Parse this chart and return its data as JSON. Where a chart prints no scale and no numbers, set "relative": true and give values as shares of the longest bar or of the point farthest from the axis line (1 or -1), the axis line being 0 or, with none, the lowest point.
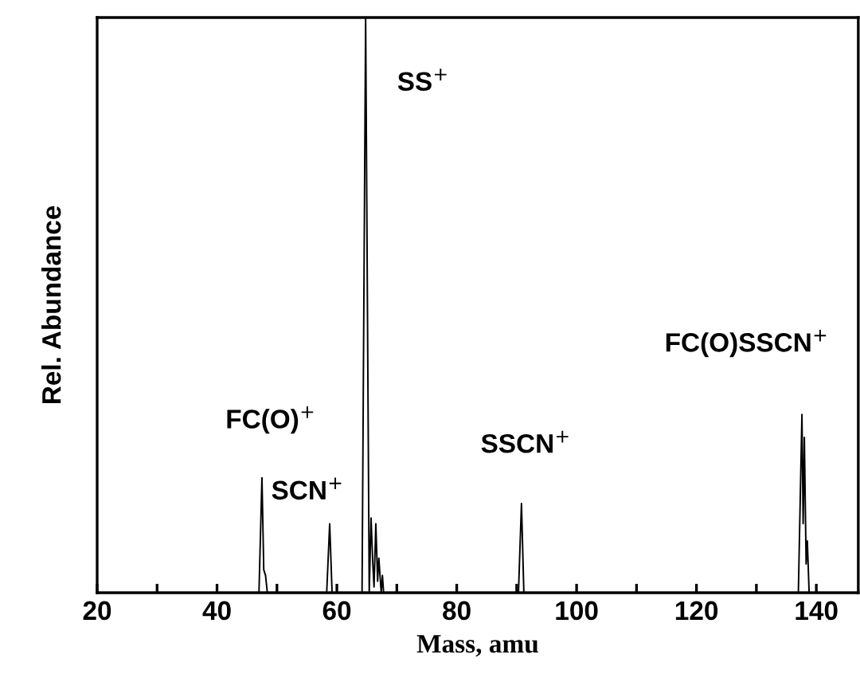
{
  "chart_data": {
    "type": "line",
    "relative": true,
    "xlabel": "Mass, amu",
    "ylabel": "Rel. Abundance",
    "xlim": [
      20,
      147
    ],
    "xticks": [
      20,
      {
        "value": 30,
        "label": null
      },
      40,
      {
        "value": 50,
        "label": null
      },
      60,
      {
        "value": 70,
        "label": null
      },
      80,
      {
        "value": 90,
        "label": null
      },
      100,
      {
        "value": 110,
        "label": null
      },
      120,
      {
        "value": 130,
        "label": null
      },
      140
    ],
    "series": [
      {
        "color": "#000000",
        "x": [
          20,
          47.0,
          47.5,
          47.8,
          48.1,
          48.4,
          58.3,
          58.8,
          59.2,
          64.2,
          64.8,
          65.4,
          65.7,
          66.0,
          66.2,
          66.5,
          66.8,
          67.0,
          67.4,
          67.6,
          67.8,
          90.3,
          90.8,
          91.2,
          137.0,
          137.6,
          137.8,
          138.0,
          138.3,
          138.5,
          138.8,
          147
        ],
        "values": [
          0,
          0,
          0.2,
          0.04,
          0.03,
          0,
          0,
          0.12,
          0,
          0,
          1.0,
          0,
          0.13,
          0.05,
          0.01,
          0.12,
          0.02,
          0.06,
          0,
          0.03,
          0,
          0,
          0.155,
          0,
          0,
          0.31,
          0.12,
          0.27,
          0.05,
          0.09,
          0,
          0
        ]
      }
    ],
    "annotations": [
      {
        "text": "FC(O)$^{+}$",
        "x": 47.5,
        "y": 0.2
      },
      {
        "text": "SCN$^{+}$",
        "x": 58.8,
        "y": 0.12
      },
      {
        "text": "SS$^{+}$",
        "x": 64.8,
        "y": 1.0
      },
      {
        "text": "SSCN$^{+}$",
        "x": 90.8,
        "y": 0.155
      },
      {
        "text": "FC(O)SSCN$^{+}$",
        "x": 137.6,
        "y": 0.31
      }
    ],
    "grid": false,
    "legend": false
  }
}
